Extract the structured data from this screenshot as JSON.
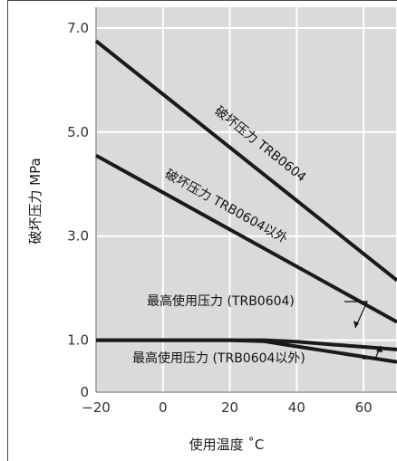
{
  "colors": {
    "background": "#ffffff",
    "plot_background": "#d8dadc",
    "grid": "#ffffff",
    "line": "#1a1a1a",
    "border": "#444444"
  },
  "chart_data": {
    "type": "line",
    "title": "",
    "xlabel": "使用温度 ˚C",
    "ylabel": "破坏压力 MPa",
    "xlim": [
      -20,
      70
    ],
    "ylim": [
      0,
      7.4
    ],
    "grid": true,
    "legend": "none",
    "xticks": [
      -20,
      0,
      20,
      40,
      60
    ],
    "xtick_labels": [
      "−20",
      "0",
      "20",
      "40",
      "60"
    ],
    "yticks": [
      0,
      1.0,
      3.0,
      5.0,
      7.0
    ],
    "ytick_labels": [
      "0",
      "1.0",
      "3.0",
      "5.0",
      "7.0"
    ],
    "series": [
      {
        "name": "破坏压力 TRB0604",
        "x": [
          -20,
          70
        ],
        "y": [
          6.75,
          2.15
        ]
      },
      {
        "name": "破坏压力 TRB0604以外",
        "x": [
          -20,
          70
        ],
        "y": [
          4.55,
          1.35
        ]
      },
      {
        "name": "最高使用压力 (TRB0604)",
        "x": [
          -20,
          0,
          20,
          30,
          40,
          50,
          60,
          70
        ],
        "y": [
          1.0,
          1.0,
          1.0,
          1.0,
          0.97,
          0.92,
          0.87,
          0.82
        ]
      },
      {
        "name": "最高使用压力 (TRB0604以外)",
        "x": [
          -20,
          0,
          20,
          30,
          40,
          50,
          60,
          70
        ],
        "y": [
          1.0,
          1.0,
          1.0,
          0.98,
          0.88,
          0.78,
          0.68,
          0.58
        ]
      }
    ]
  }
}
